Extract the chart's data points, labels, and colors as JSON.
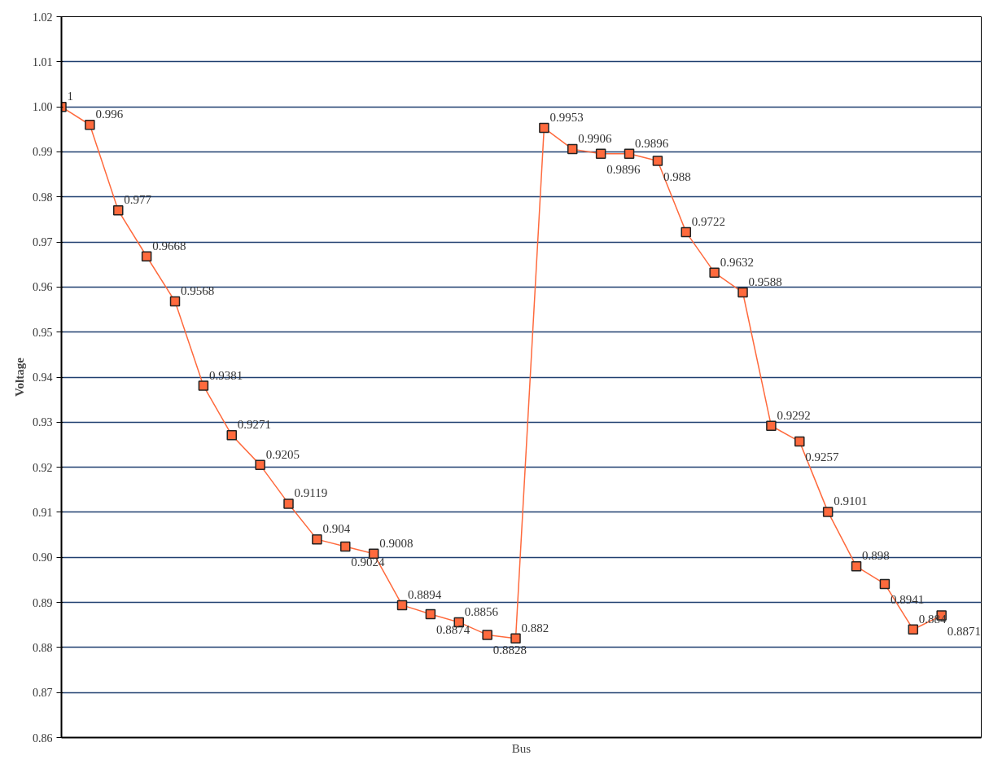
{
  "chart_data": {
    "type": "line",
    "xlabel": "Bus",
    "ylabel": "Voltage",
    "categories": [
      null,
      null,
      null,
      null,
      null,
      null,
      null,
      null,
      null,
      null,
      null,
      null,
      null,
      null,
      null,
      null,
      null,
      null,
      null,
      null,
      null,
      null,
      null,
      null,
      null,
      null,
      null,
      null,
      null,
      null,
      null,
      null
    ],
    "series": [
      {
        "color": "#ff6a3d",
        "values": [
          1,
          0.996,
          0.977,
          0.9668,
          0.9568,
          0.9381,
          0.9271,
          0.9205,
          0.9119,
          0.904,
          0.9024,
          0.9008,
          0.8894,
          0.8874,
          0.8856,
          0.8828,
          0.882,
          0.9953,
          0.9906,
          0.9896,
          0.9896,
          0.988,
          0.9722,
          0.9632,
          0.9588,
          0.9292,
          0.9257,
          0.9101,
          0.898,
          0.8941,
          0.884,
          0.8871
        ]
      }
    ],
    "ylim": [
      0.86,
      1.02
    ],
    "yticks": [
      0.86,
      0.87,
      0.88,
      0.89,
      {
        "value": 0.9,
        "label": "0.90"
      },
      0.91,
      0.92,
      0.93,
      0.94,
      0.95,
      0.96,
      0.97,
      0.98,
      0.99,
      {
        "value": 1.0,
        "label": "1.00"
      },
      1.01,
      1.02
    ],
    "grid": "y",
    "marker": "square",
    "line_style": "solid",
    "data_labels": true
  }
}
